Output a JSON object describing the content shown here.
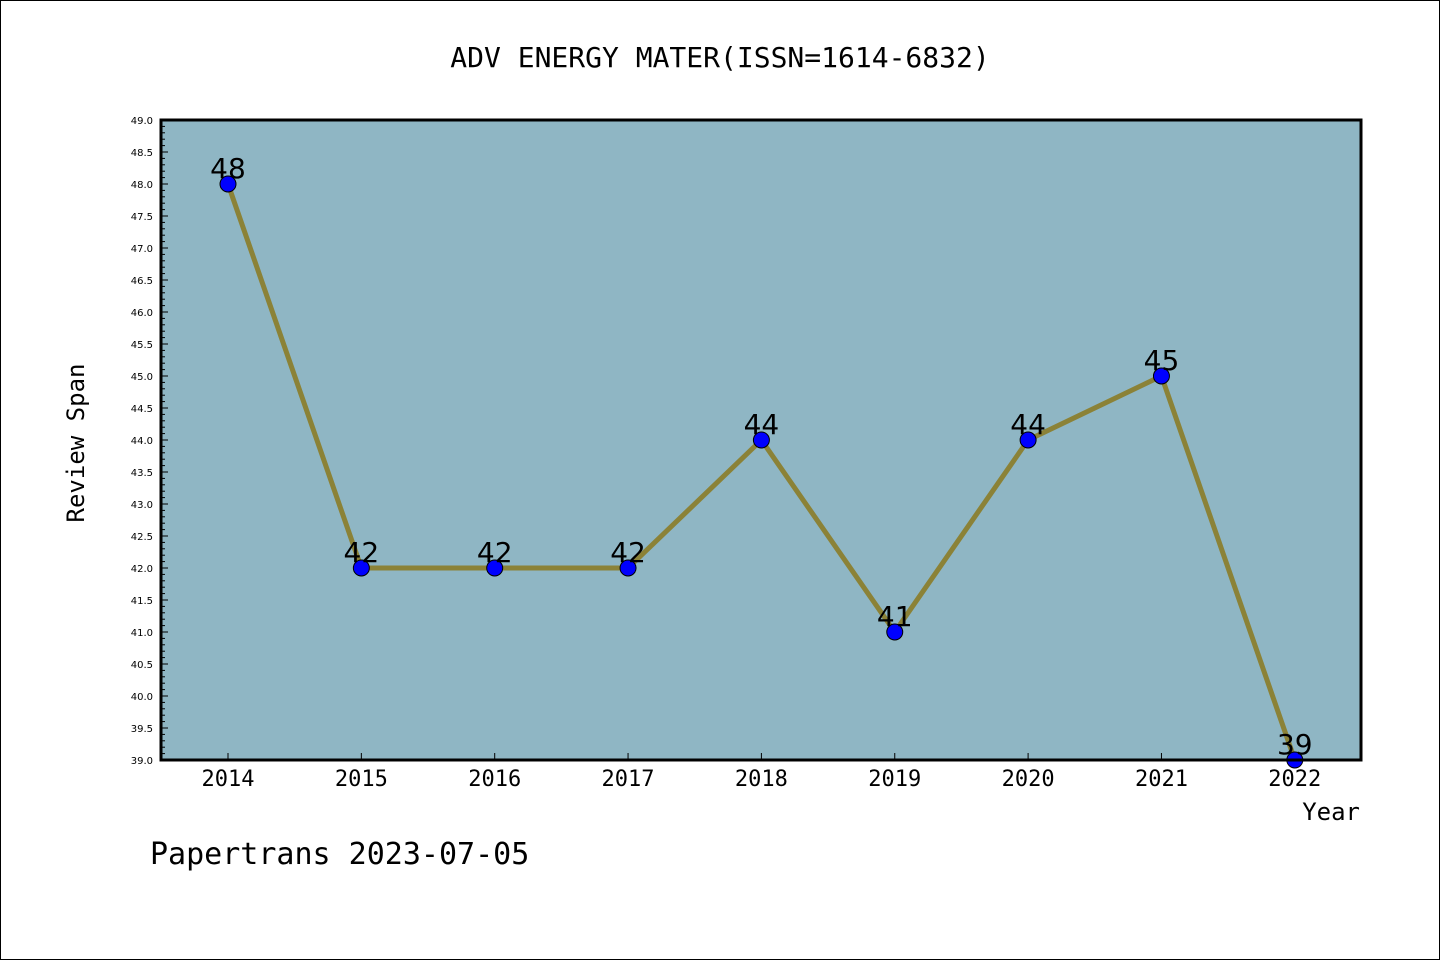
{
  "chart_data": {
    "type": "line",
    "title": "ADV ENERGY MATER(ISSN=1614-6832)",
    "xlabel": "Year",
    "ylabel": "Review Span",
    "categories": [
      "2014",
      "2015",
      "2016",
      "2017",
      "2018",
      "2019",
      "2020",
      "2021",
      "2022"
    ],
    "series": [
      {
        "values": [
          48,
          42,
          42,
          42,
          44,
          41,
          44,
          45,
          39
        ]
      }
    ],
    "ylim": [
      39.0,
      49.0
    ],
    "ytick_step": 0.5,
    "grid": false,
    "legend": "none",
    "colors": {
      "plot_background": "#8fb6c4",
      "line": "#8b8237",
      "marker": "#0000ff"
    }
  },
  "footer": {
    "watermark": "Papertrans 2023-07-05"
  }
}
